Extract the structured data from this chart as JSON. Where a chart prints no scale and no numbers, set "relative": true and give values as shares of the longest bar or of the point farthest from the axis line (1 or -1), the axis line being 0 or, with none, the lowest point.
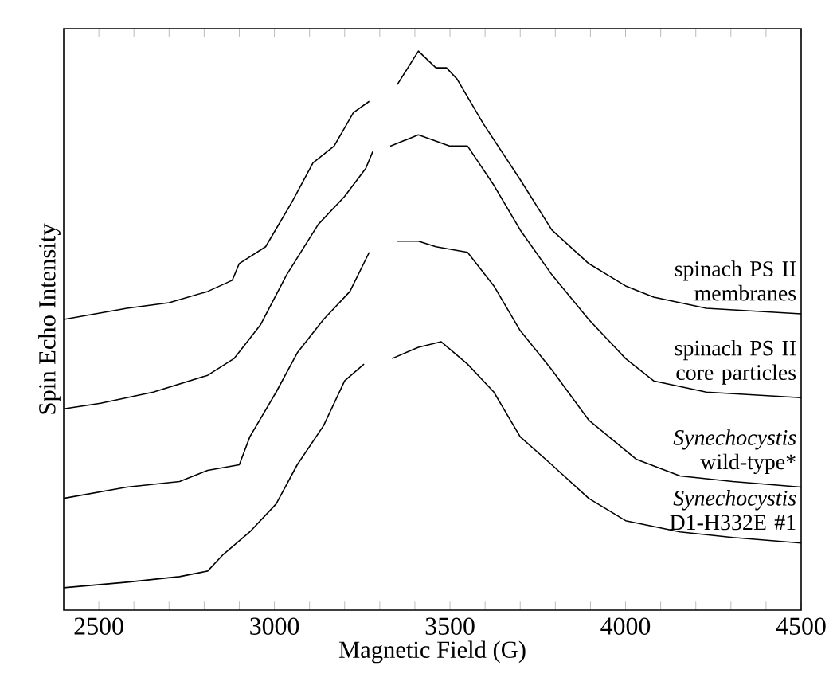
{
  "chart_data": {
    "type": "line",
    "relative": true,
    "xlabel": "Magnetic Field (G)",
    "ylabel": "Spin Echo Intensity",
    "xlim": [
      2400,
      4500
    ],
    "xticks": [
      2500,
      {
        "value": 2600,
        "label": null
      },
      {
        "value": 2700,
        "label": null
      },
      {
        "value": 2800,
        "label": null
      },
      {
        "value": 2900,
        "label": null
      },
      3000,
      {
        "value": 3100,
        "label": null
      },
      {
        "value": 3200,
        "label": null
      },
      {
        "value": 3300,
        "label": null
      },
      {
        "value": 3400,
        "label": null
      },
      3500,
      {
        "value": 3600,
        "label": null
      },
      {
        "value": 3700,
        "label": null
      },
      {
        "value": 3800,
        "label": null
      },
      {
        "value": 3900,
        "label": null
      },
      4000,
      {
        "value": 4100,
        "label": null
      },
      {
        "value": 4200,
        "label": null
      },
      {
        "value": 4300,
        "label": null
      },
      {
        "value": 4400,
        "label": null
      },
      4500
    ],
    "marker": "none",
    "line_style": "solid",
    "series": [
      {
        "name": "spinach PS II membranes",
        "color": "#000000",
        "x": [
          2400,
          2580,
          2700,
          2810,
          2880,
          2900,
          2975,
          3050,
          3110,
          3170,
          3225,
          3270,
          3310,
          3350,
          3410,
          3460,
          3490,
          3520,
          3595,
          3700,
          3790,
          3895,
          4000,
          4080,
          4230,
          4500
        ],
        "values": [
          0.52,
          0.54,
          0.55,
          0.57,
          0.59,
          0.62,
          0.65,
          0.73,
          0.8,
          0.83,
          0.89,
          0.91,
          null,
          0.94,
          1.0,
          0.97,
          0.97,
          0.95,
          0.87,
          0.77,
          0.68,
          0.62,
          0.58,
          0.56,
          0.54,
          0.53
        ]
      },
      {
        "name": "spinach PS II core particles",
        "color": "#000000",
        "x": [
          2400,
          2505,
          2655,
          2810,
          2885,
          2960,
          3035,
          3125,
          3200,
          3260,
          3280,
          3305,
          3330,
          3410,
          3500,
          3550,
          3625,
          3700,
          3790,
          3895,
          4000,
          4080,
          4230,
          4500
        ],
        "values": [
          0.36,
          0.37,
          0.39,
          0.42,
          0.45,
          0.51,
          0.6,
          0.69,
          0.74,
          0.79,
          0.82,
          null,
          0.83,
          0.85,
          0.83,
          0.83,
          0.76,
          0.68,
          0.6,
          0.52,
          0.45,
          0.41,
          0.39,
          0.38
        ]
      },
      {
        "name": "*Synechocystis* wild-type*",
        "color": "#000000",
        "x": [
          2400,
          2580,
          2730,
          2810,
          2900,
          2930,
          3005,
          3065,
          3140,
          3215,
          3270,
          3310,
          3350,
          3410,
          3460,
          3550,
          3625,
          3700,
          3790,
          3895,
          4030,
          4155,
          4305,
          4500
        ],
        "values": [
          0.2,
          0.22,
          0.23,
          0.25,
          0.26,
          0.31,
          0.39,
          0.46,
          0.52,
          0.57,
          0.64,
          null,
          0.66,
          0.66,
          0.65,
          0.64,
          0.58,
          0.5,
          0.43,
          0.34,
          0.27,
          0.24,
          0.23,
          0.22
        ]
      },
      {
        "name": "*Synechocystis* D1-H332E #1",
        "color": "#000000",
        "x": [
          2400,
          2580,
          2730,
          2810,
          2855,
          2930,
          3005,
          3065,
          3140,
          3200,
          3255,
          3295,
          3335,
          3410,
          3475,
          3550,
          3625,
          3700,
          3790,
          3895,
          4000,
          4155,
          4305,
          4500
        ],
        "values": [
          0.04,
          0.05,
          0.06,
          0.07,
          0.1,
          0.14,
          0.19,
          0.26,
          0.33,
          0.41,
          0.44,
          null,
          0.45,
          0.47,
          0.48,
          0.44,
          0.39,
          0.31,
          0.26,
          0.2,
          0.16,
          0.14,
          0.13,
          0.12
        ]
      }
    ]
  }
}
